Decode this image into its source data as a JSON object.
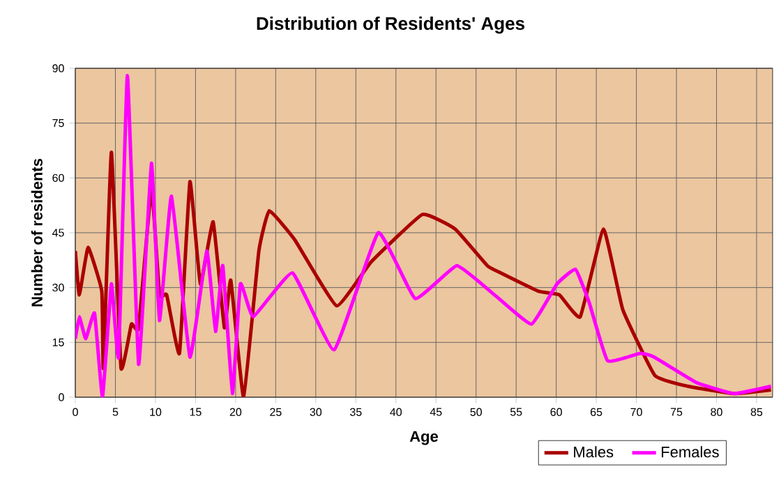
{
  "chart_data": {
    "type": "line",
    "title": "Distribution of Residents' Ages",
    "xlabel": "Age",
    "ylabel": "Number of residents",
    "xlim": [
      0,
      87
    ],
    "xticks": [
      0,
      5,
      10,
      15,
      20,
      25,
      30,
      35,
      40,
      45,
      50,
      55,
      60,
      65,
      70,
      75,
      80,
      85
    ],
    "ylim": [
      0,
      90
    ],
    "yticks": [
      0,
      15,
      30,
      45,
      60,
      75,
      90
    ],
    "grid": true,
    "legend": "bottom right",
    "series": [
      {
        "name": "Males",
        "color": "#aa0000",
        "x": [
          0,
          0.5,
          1.6,
          3.3,
          3.5,
          4.5,
          5.7,
          7,
          7.9,
          9.5,
          10.5,
          11.4,
          13,
          14.3,
          15.6,
          17.2,
          18.6,
          19.4,
          21,
          22.9,
          24.2,
          27.4,
          32.6,
          36.9,
          43.3,
          47.4,
          51.4,
          53.1,
          57.8,
          60.4,
          63,
          65.9,
          68.3,
          72.3,
          76.4,
          82.2,
          86.8
        ],
        "values": [
          40,
          28,
          41,
          29,
          8,
          67,
          8,
          20,
          19,
          57,
          28,
          28,
          12,
          59,
          31,
          48,
          19,
          32,
          0,
          40,
          51,
          43,
          25,
          37,
          50,
          46,
          36,
          34,
          29,
          28,
          22,
          46,
          24,
          6,
          3,
          1,
          2
        ]
      },
      {
        "name": "Females",
        "color": "#ff00ff",
        "x": [
          0,
          0.5,
          1.3,
          2.4,
          3.4,
          4.5,
          5.4,
          6.5,
          7.9,
          9.5,
          10.5,
          12,
          14.3,
          16.4,
          17.5,
          18.4,
          19.6,
          20.6,
          22.2,
          27.1,
          32.3,
          37.8,
          42.4,
          47.6,
          52.3,
          56.9,
          60.1,
          62.4,
          64.1,
          66.4,
          70.5,
          72.2,
          77.5,
          82.2,
          86.8
        ],
        "values": [
          16,
          22,
          16,
          23,
          0,
          31,
          11,
          88,
          9,
          64,
          21,
          55,
          11,
          40,
          18,
          36,
          1,
          31,
          22,
          34,
          13,
          45,
          27,
          36,
          28,
          20,
          31,
          35,
          26,
          10,
          12,
          11,
          4,
          1,
          3
        ]
      }
    ]
  }
}
